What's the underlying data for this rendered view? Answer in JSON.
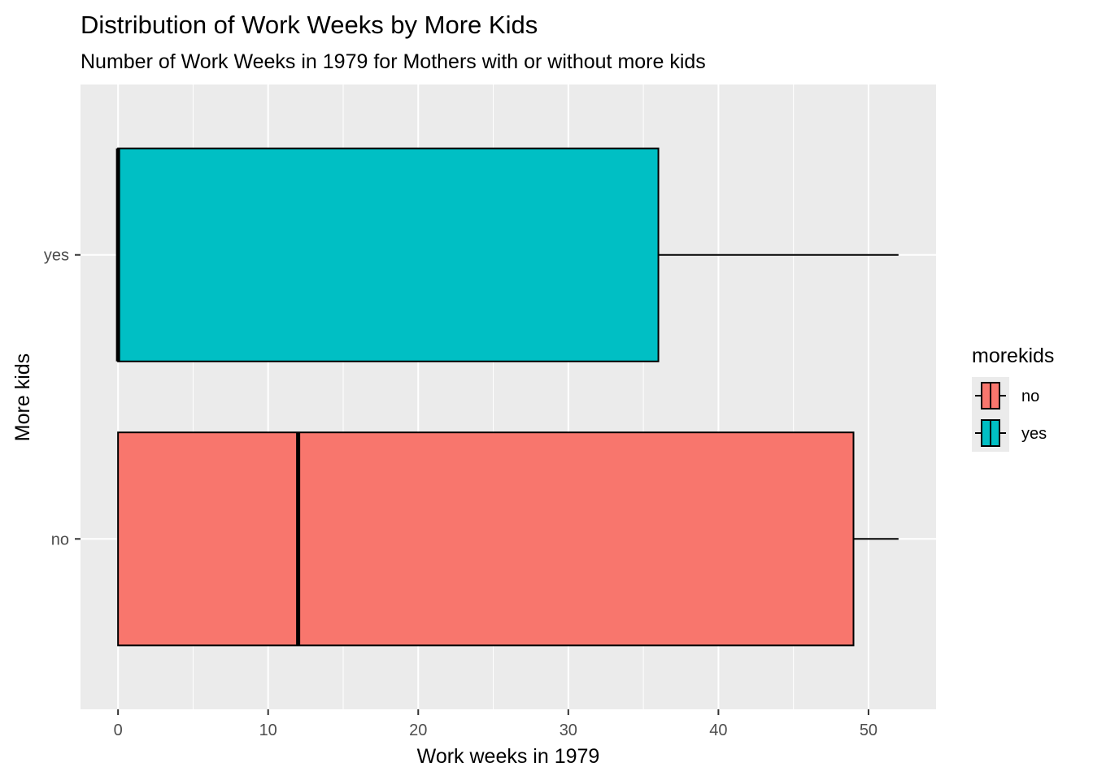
{
  "chart_data": {
    "type": "boxplot",
    "orientation": "horizontal",
    "title": "Distribution of Work Weeks by More Kids",
    "subtitle": "Number of Work Weeks in 1979 for Mothers with or without more kids",
    "xlabel": "Work weeks in 1979",
    "ylabel": "More kids",
    "xlim": [
      -2.5,
      54.5
    ],
    "xticks": [
      0,
      10,
      20,
      30,
      40,
      50
    ],
    "xtick_labels": [
      "0",
      "10",
      "20",
      "30",
      "40",
      "50"
    ],
    "categories": [
      "no",
      "yes"
    ],
    "grid": true,
    "legend": {
      "title": "morekids",
      "position": "right",
      "entries": [
        {
          "label": "no",
          "color": "#F8766D"
        },
        {
          "label": "yes",
          "color": "#00BFC4"
        }
      ]
    },
    "series": [
      {
        "category": "no",
        "min": 0,
        "q1": 0,
        "median": 12,
        "q3": 49,
        "max": 52,
        "color": "#F8766D"
      },
      {
        "category": "yes",
        "min": 0,
        "q1": 0,
        "median": 0,
        "q3": 36,
        "max": 52,
        "color": "#00BFC4"
      }
    ]
  }
}
